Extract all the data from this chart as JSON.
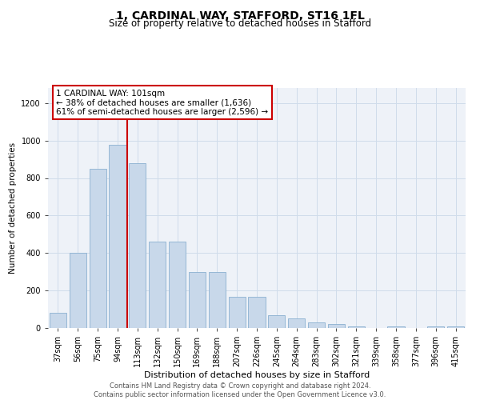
{
  "title": "1, CARDINAL WAY, STAFFORD, ST16 1FL",
  "subtitle": "Size of property relative to detached houses in Stafford",
  "xlabel": "Distribution of detached houses by size in Stafford",
  "ylabel": "Number of detached properties",
  "categories": [
    "37sqm",
    "56sqm",
    "75sqm",
    "94sqm",
    "113sqm",
    "132sqm",
    "150sqm",
    "169sqm",
    "188sqm",
    "207sqm",
    "226sqm",
    "245sqm",
    "264sqm",
    "283sqm",
    "302sqm",
    "321sqm",
    "339sqm",
    "358sqm",
    "377sqm",
    "396sqm",
    "415sqm"
  ],
  "values": [
    80,
    400,
    850,
    975,
    880,
    460,
    460,
    300,
    300,
    165,
    165,
    70,
    50,
    30,
    20,
    10,
    0,
    10,
    0,
    10,
    10
  ],
  "bar_color": "#c8d8ea",
  "bar_edgecolor": "#8ab0d0",
  "red_line_x": 3.5,
  "annotation_text": "1 CARDINAL WAY: 101sqm\n← 38% of detached houses are smaller (1,636)\n61% of semi-detached houses are larger (2,596) →",
  "annotation_box_color": "#ffffff",
  "annotation_box_edgecolor": "#cc0000",
  "red_line_color": "#cc0000",
  "ylim": [
    0,
    1280
  ],
  "yticks": [
    0,
    200,
    400,
    600,
    800,
    1000,
    1200
  ],
  "grid_color": "#d0dcea",
  "plot_bg_color": "#eef2f8",
  "footer_text": "Contains HM Land Registry data © Crown copyright and database right 2024.\nContains public sector information licensed under the Open Government Licence v3.0.",
  "title_fontsize": 10,
  "subtitle_fontsize": 8.5,
  "xlabel_fontsize": 8,
  "ylabel_fontsize": 7.5,
  "tick_fontsize": 7,
  "annotation_fontsize": 7.5,
  "footer_fontsize": 6
}
